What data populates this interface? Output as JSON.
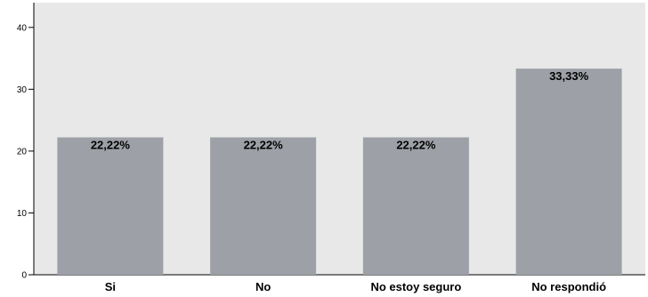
{
  "chart_data": {
    "type": "bar",
    "categories": [
      "Si",
      "No",
      "No estoy seguro",
      "No respondió"
    ],
    "values": [
      22.22,
      22.22,
      22.22,
      33.33
    ],
    "data_labels": [
      "22,22%",
      "22,22%",
      "22,22%",
      "33,33%"
    ],
    "yticks": [
      "0",
      "10",
      "20",
      "30",
      "40"
    ],
    "ylim": [
      0,
      44
    ],
    "title": "",
    "xlabel": "",
    "ylabel": "",
    "grid": false,
    "colors": {
      "bar": "#9da0a6",
      "plot_background": "#e8e8e8",
      "axis": "#000000"
    }
  }
}
